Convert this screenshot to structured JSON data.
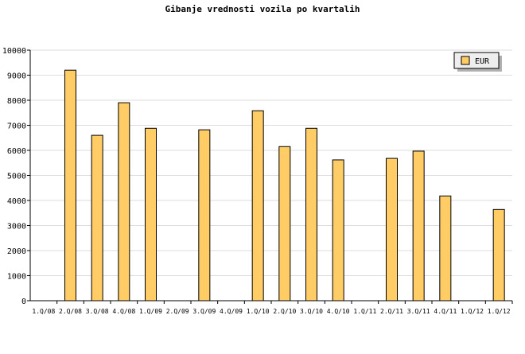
{
  "chart_data": {
    "type": "bar",
    "title": "Gibanje vrednosti vozila po kvartalih",
    "xlabel": "",
    "ylabel": "",
    "categories": [
      "1.Q/08",
      "2.Q/08",
      "3.Q/08",
      "4.Q/08",
      "1.Q/09",
      "2.Q/09",
      "3.Q/09",
      "4.Q/09",
      "1.Q/10",
      "2.Q/10",
      "3.Q/10",
      "4.Q/10",
      "1.Q/11",
      "2.Q/11",
      "3.Q/11",
      "4.Q/11",
      "1.Q/12",
      "1.Q/12"
    ],
    "series": [
      {
        "name": "EUR",
        "values": [
          0,
          9200,
          6600,
          7900,
          6880,
          0,
          6820,
          0,
          7580,
          6150,
          6880,
          5620,
          0,
          5680,
          5970,
          4180,
          0,
          3640
        ],
        "color": "#ffcc66"
      }
    ],
    "ylim": [
      0,
      10000
    ],
    "yticks": [
      0,
      1000,
      2000,
      3000,
      4000,
      5000,
      6000,
      7000,
      8000,
      9000,
      10000
    ],
    "grid": true,
    "legend_placement": "top-right"
  }
}
